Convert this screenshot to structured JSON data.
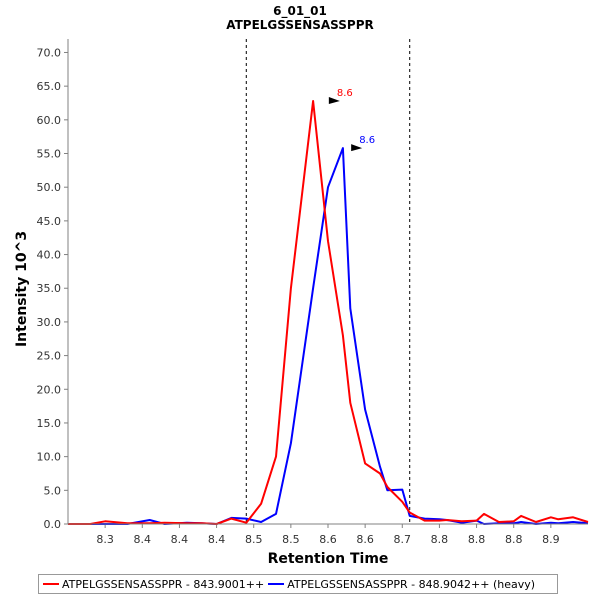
{
  "chart_data": {
    "type": "line",
    "title": "6_01_01",
    "subtitle": "ATPELGSSENSASSPPR",
    "xlabel": "Retention Time",
    "ylabel": "Intensity 10^3",
    "xlim": [
      8.25,
      8.95
    ],
    "ylim": [
      0,
      72
    ],
    "xticks": [
      8.3,
      8.35,
      8.4,
      8.45,
      8.5,
      8.55,
      8.6,
      8.65,
      8.7,
      8.75,
      8.8,
      8.85,
      8.9
    ],
    "xtick_labels": [
      "8.3",
      "8.4",
      "8.4",
      "8.4",
      "8.5",
      "8.5",
      "8.6",
      "8.6",
      "8.7",
      "8.8",
      "8.8",
      "8.8",
      "8.9"
    ],
    "yticks": [
      0,
      5,
      10,
      15,
      20,
      25,
      30,
      35,
      40,
      45,
      50,
      55,
      60,
      65,
      70
    ],
    "ytick_labels": [
      "0.0",
      "5.0",
      "10.0",
      "15.0",
      "20.0",
      "25.0",
      "30.0",
      "35.0",
      "40.0",
      "45.0",
      "50.0",
      "55.0",
      "60.0",
      "65.0",
      "70.0"
    ],
    "integration_bounds": [
      8.49,
      8.71
    ],
    "grid": false,
    "legend_position": "bottom",
    "series": [
      {
        "name": "ATPELGSSENSASSPPR - 843.9001++",
        "color": "#ff0000",
        "x": [
          8.25,
          8.28,
          8.3,
          8.33,
          8.36,
          8.38,
          8.41,
          8.43,
          8.45,
          8.47,
          8.49,
          8.51,
          8.53,
          8.55,
          8.58,
          8.6,
          8.62,
          8.63,
          8.65,
          8.67,
          8.68,
          8.7,
          8.71,
          8.73,
          8.75,
          8.76,
          8.78,
          8.8,
          8.81,
          8.83,
          8.85,
          8.86,
          8.88,
          8.9,
          8.91,
          8.93,
          8.95
        ],
        "y": [
          0,
          0,
          0.4,
          0.1,
          0.1,
          0.2,
          0.1,
          0.1,
          0.0,
          0.8,
          0.2,
          3.0,
          10.0,
          35.0,
          62.8,
          42.0,
          28.0,
          18.0,
          9.0,
          7.5,
          5.5,
          3.3,
          1.7,
          0.5,
          0.5,
          0.6,
          0.4,
          0.5,
          1.5,
          0.3,
          0.4,
          1.2,
          0.3,
          1.0,
          0.7,
          1.0,
          0.3
        ],
        "peak": {
          "x": 8.6,
          "y": 62.8,
          "label": "8.6"
        }
      },
      {
        "name": "ATPELGSSENSASSPPR - 848.9042++ (heavy)",
        "color": "#0000ff",
        "x": [
          8.25,
          8.28,
          8.3,
          8.33,
          8.36,
          8.38,
          8.41,
          8.43,
          8.45,
          8.47,
          8.49,
          8.51,
          8.53,
          8.55,
          8.58,
          8.6,
          8.62,
          8.63,
          8.65,
          8.67,
          8.68,
          8.7,
          8.71,
          8.73,
          8.75,
          8.76,
          8.78,
          8.8,
          8.81,
          8.83,
          8.85,
          8.86,
          8.88,
          8.9,
          8.91,
          8.93,
          8.95
        ],
        "y": [
          0,
          0,
          0.0,
          0.0,
          0.6,
          0.0,
          0.2,
          0.1,
          0.0,
          0.9,
          0.8,
          0.3,
          1.5,
          12.0,
          35.0,
          50.0,
          55.8,
          32.0,
          17.0,
          8.5,
          5.0,
          5.1,
          1.2,
          0.8,
          0.7,
          0.6,
          0.2,
          0.5,
          0.0,
          0.1,
          0.1,
          0.3,
          0.0,
          0.2,
          0.1,
          0.3,
          0.1
        ],
        "peak": {
          "x": 8.6,
          "y": 55.8,
          "label": "8.6"
        }
      }
    ]
  }
}
